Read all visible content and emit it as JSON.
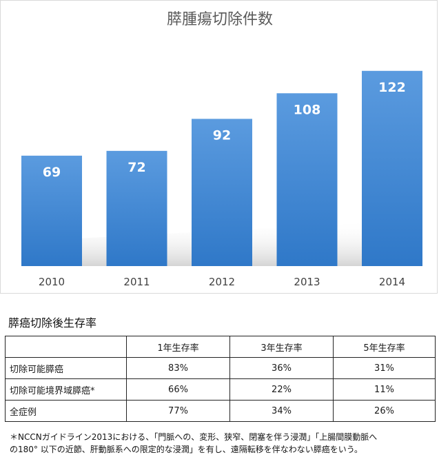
{
  "chart_data": {
    "type": "bar",
    "title": "膵腫瘍切除件数",
    "categories": [
      "2010",
      "2011",
      "2012",
      "2013",
      "2014"
    ],
    "values": [
      69,
      72,
      92,
      108,
      122
    ],
    "ylim": [
      0,
      140
    ],
    "grid": false,
    "legend": "none",
    "bar_color": "#4a90d9"
  },
  "table": {
    "title": "膵癌切除後生存率",
    "headers": [
      "",
      "1年生存率",
      "3年生存率",
      "5年生存率"
    ],
    "rows": [
      {
        "label": "切除可能膵癌",
        "values": [
          "83%",
          "36%",
          "31%"
        ]
      },
      {
        "label": "切除可能境界域膵癌*",
        "values": [
          "66%",
          "22%",
          "11%"
        ]
      },
      {
        "label": "全症例",
        "values": [
          "77%",
          "34%",
          "26%"
        ]
      }
    ]
  },
  "footnote": {
    "line1": "＊NCCNガイドライン2013における、「門脈への、変形、狭窄、閉塞を伴う浸潤」「上腸間膜動脈へ",
    "line2": "の180°  以下の近節、肝動脈系への限定的な浸潤」を有し、遠隔転移を伴なわない膵癌をいう。"
  }
}
